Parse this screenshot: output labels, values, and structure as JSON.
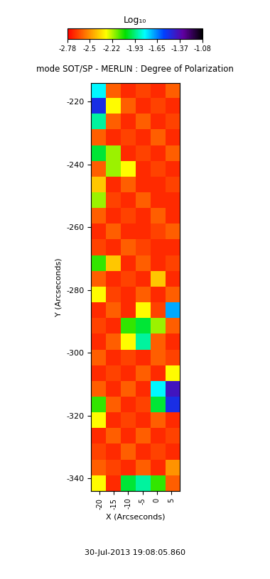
{
  "chart_data": {
    "type": "heatmap",
    "title": "mode SOT/SP - MERLIN : Degree of Polarization",
    "x_label": "X (Arcseconds)",
    "y_label": "Y (Arcseconds)",
    "date": "30-Jul-2013 19:08:05.860",
    "colorbar_label": "Log₁₀",
    "colorbar_range": [
      -2.78,
      -1.08
    ],
    "colorbar_ticks": [
      -2.78,
      -2.5,
      -2.22,
      -1.93,
      -1.65,
      -1.37,
      -1.08
    ],
    "xlim": [
      -23,
      8
    ],
    "ylim": [
      -344,
      -214
    ],
    "xticks": [
      -20,
      -15,
      -10,
      -5,
      0,
      5
    ],
    "yticks": [
      -340,
      -320,
      -300,
      -280,
      -260,
      -240,
      -220
    ],
    "cells": [
      [
        -1.8,
        -2.6,
        -2.7,
        -2.65,
        -2.7,
        -2.6
      ],
      [
        -1.5,
        -2.3,
        -2.6,
        -2.7,
        -2.65,
        -2.7
      ],
      [
        -1.9,
        -2.6,
        -2.7,
        -2.6,
        -2.7,
        -2.65
      ],
      [
        -2.6,
        -2.7,
        -2.65,
        -2.7,
        -2.6,
        -2.7
      ],
      [
        -2.0,
        -2.2,
        -2.7,
        -2.65,
        -2.7,
        -2.6
      ],
      [
        -2.6,
        -2.2,
        -2.3,
        -2.7,
        -2.65,
        -2.7
      ],
      [
        -2.4,
        -2.7,
        -2.6,
        -2.7,
        -2.7,
        -2.65
      ],
      [
        -2.2,
        -2.65,
        -2.7,
        -2.6,
        -2.7,
        -2.7
      ],
      [
        -2.6,
        -2.7,
        -2.65,
        -2.7,
        -2.6,
        -2.7
      ],
      [
        -2.7,
        -2.6,
        -2.7,
        -2.7,
        -2.65,
        -2.6
      ],
      [
        -2.65,
        -2.7,
        -2.6,
        -2.65,
        -2.7,
        -2.7
      ],
      [
        -2.1,
        -2.4,
        -2.7,
        -2.6,
        -2.7,
        -2.65
      ],
      [
        -2.6,
        -2.7,
        -2.65,
        -2.7,
        -2.4,
        -2.7
      ],
      [
        -2.3,
        -2.65,
        -2.7,
        -2.6,
        -2.7,
        -2.6
      ],
      [
        -2.7,
        -2.6,
        -2.7,
        -2.3,
        -2.65,
        -1.7
      ],
      [
        -2.65,
        -2.7,
        -2.1,
        -2.0,
        -2.2,
        -2.6
      ],
      [
        -2.7,
        -2.6,
        -2.3,
        -1.9,
        -2.6,
        -2.7
      ],
      [
        -2.6,
        -2.7,
        -2.65,
        -2.7,
        -2.6,
        -2.65
      ],
      [
        -2.7,
        -2.65,
        -2.7,
        -2.6,
        -2.7,
        -2.3
      ],
      [
        -2.6,
        -2.7,
        -2.6,
        -2.7,
        -1.8,
        -1.4
      ],
      [
        -2.1,
        -2.6,
        -2.7,
        -2.65,
        -2.0,
        -1.5
      ],
      [
        -2.3,
        -2.7,
        -2.65,
        -2.7,
        -2.6,
        -2.7
      ],
      [
        -2.7,
        -2.6,
        -2.7,
        -2.6,
        -2.7,
        -2.65
      ],
      [
        -2.65,
        -2.7,
        -2.6,
        -2.7,
        -2.65,
        -2.7
      ],
      [
        -2.6,
        -2.65,
        -2.7,
        -2.6,
        -2.7,
        -2.5
      ],
      [
        -2.3,
        -2.7,
        -2.0,
        -1.9,
        -2.1,
        -2.6
      ]
    ]
  }
}
